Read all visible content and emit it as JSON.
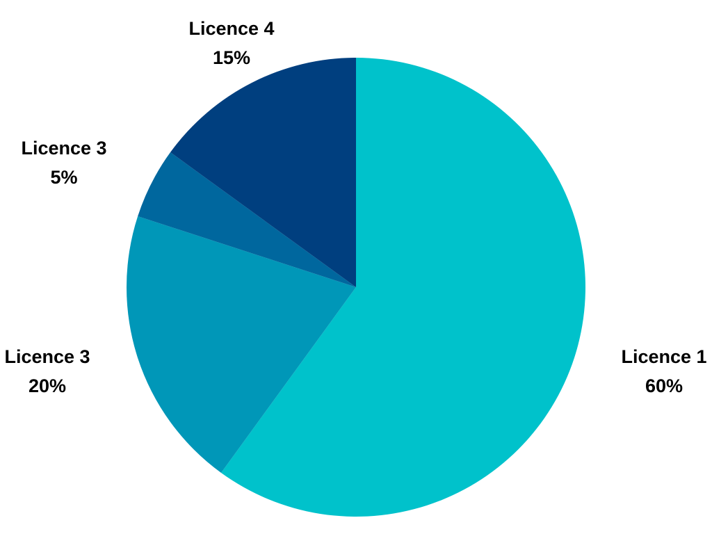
{
  "chart_data": {
    "type": "pie",
    "title": "",
    "start_angle_deg": 0,
    "direction": "clockwise",
    "slices": [
      {
        "label": "Licence 1",
        "value": 60,
        "percent_label": "60%",
        "color": "#00C2CB"
      },
      {
        "label": "Licence 3",
        "value": 20,
        "percent_label": "20%",
        "color": "#0097B8"
      },
      {
        "label": "Licence 3",
        "value": 5,
        "percent_label": "5%",
        "color": "#00679E"
      },
      {
        "label": "Licence 4",
        "value": 15,
        "percent_label": "15%",
        "color": "#003F7F"
      }
    ],
    "legend": "none",
    "data_labels": "outside"
  }
}
